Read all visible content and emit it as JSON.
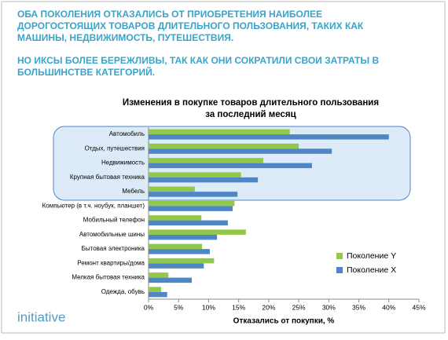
{
  "header": {
    "paragraphs": [
      [
        "ОБА ПОКОЛЕНИЯ ОТКАЗАЛИСЬ ОТ ПРИОБРЕТЕНИЯ НАИБОЛЕЕ",
        "ДОРОГОСТОЯЩИХ ТОВАРОВ ДЛИТЕЛЬНОГО ПОЛЬЗОВАНИЯ, ТАКИХ КАК",
        "МАШИНЫ, НЕДВИЖИМОСТЬ, ПУТЕШЕСТВИЯ."
      ],
      [
        "НО ИКСЫ БОЛЕЕ БЕРЕЖЛИВЫ, ТАК КАК ОНИ СОКРАТИЛИ СВОИ ЗАТРАТЫ В",
        "БОЛЬШИНСТВЕ КАТЕГОРИЙ."
      ]
    ]
  },
  "logo": "initiative",
  "chart_data": {
    "type": "hbar",
    "title": [
      "Изменения в покупке товаров длительного пользования",
      "за последний месяц"
    ],
    "x_label": "Отказались от покупки, %",
    "categories": [
      "Автомобиль",
      "Отдых, путешествия",
      "Недвижимость",
      "Крупная бытовая техника",
      "Мебель",
      "Компьютер (в т.ч. ноубук, планшет)",
      "Мобильный телефон",
      "Автомобильные шины",
      "Бытовая электроника",
      "Ремонт квартиры/дома",
      "Мелкая бытовая техника",
      "Одежда, обувь"
    ],
    "series": [
      {
        "name": "Поколение Y",
        "color": "#92c847",
        "values": [
          23.5,
          25,
          19.1,
          15.4,
          7.7,
          14.3,
          8.8,
          16.2,
          8.9,
          10.9,
          3.3,
          2.1
        ]
      },
      {
        "name": "Поколение X",
        "color": "#4f86c6",
        "values": [
          40,
          30.5,
          27.2,
          18.2,
          14.8,
          14,
          13.2,
          11.4,
          10.2,
          9.2,
          7.2,
          3.1
        ]
      }
    ],
    "xlim": [
      0,
      45
    ],
    "xticks": [
      {
        "value": 0,
        "label": "0%"
      },
      {
        "value": 5,
        "label": "5%"
      },
      {
        "value": 10,
        "label": "10%"
      },
      {
        "value": 15,
        "label": "15%"
      },
      {
        "value": 20,
        "label": "20%"
      },
      {
        "value": 25,
        "label": "25%"
      },
      {
        "value": 30,
        "label": "30%"
      },
      {
        "value": 35,
        "label": "35%"
      },
      {
        "value": 40,
        "label": "40%"
      },
      {
        "value": 45,
        "label": "45%"
      }
    ],
    "grid": false,
    "legend": "right"
  }
}
